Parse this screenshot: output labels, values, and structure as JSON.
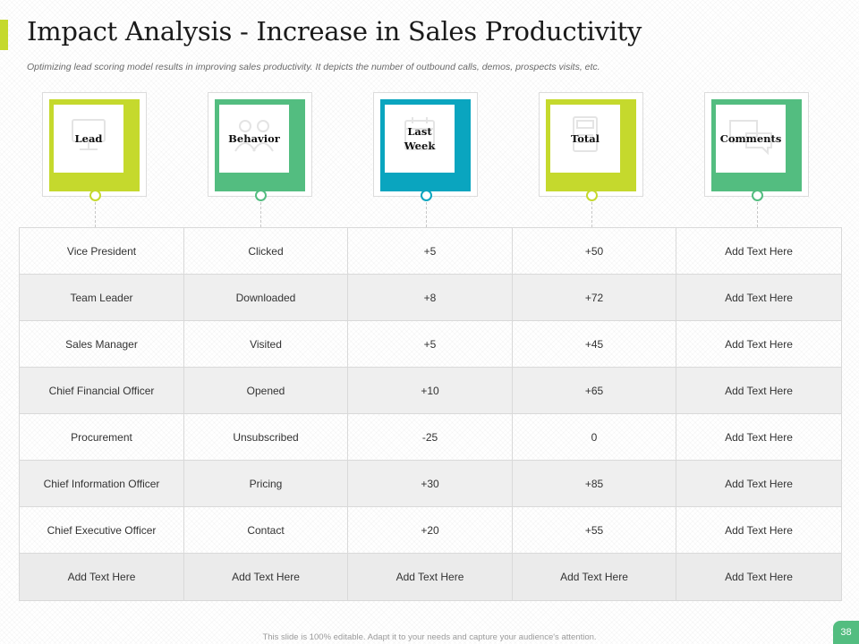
{
  "title": "Impact Analysis - Increase in Sales Productivity",
  "subtitle": "Optimizing lead scoring model results in improving sales productivity. It depicts the number of outbound calls, demos, prospects visits, etc.",
  "colors": {
    "lime": "#c5d92d",
    "green": "#53bd80",
    "teal": "#0aa5bf"
  },
  "columns": [
    {
      "label": "Lead",
      "color": "#c5d92d",
      "icon": "monitor-icon"
    },
    {
      "label": "Behavior",
      "color": "#53bd80",
      "icon": "people-icon"
    },
    {
      "label": "Last Week",
      "color": "#0aa5bf",
      "icon": "calendar-icon"
    },
    {
      "label": "Total",
      "color": "#c5d92d",
      "icon": "calculator-icon"
    },
    {
      "label": "Comments",
      "color": "#53bd80",
      "icon": "chat-bubbles-icon"
    }
  ],
  "rows": [
    [
      "Vice President",
      "Clicked",
      "+5",
      "+50",
      "Add Text Here"
    ],
    [
      "Team Leader",
      "Downloaded",
      "+8",
      "+72",
      "Add Text Here"
    ],
    [
      "Sales Manager",
      "Visited",
      "+5",
      "+45",
      "Add Text Here"
    ],
    [
      "Chief  Financial Officer",
      "Opened",
      "+10",
      "+65",
      "Add Text Here"
    ],
    [
      "Procurement",
      "Unsubscribed",
      "-25",
      "0",
      "Add Text Here"
    ],
    [
      "Chief Information  Officer",
      "Pricing",
      "+30",
      "+85",
      "Add Text Here"
    ],
    [
      "Chief  Executive Officer",
      "Contact",
      "+20",
      "+55",
      "Add Text Here"
    ],
    [
      "Add Text Here",
      "Add Text Here",
      "Add Text Here",
      "Add Text Here",
      "Add Text Here"
    ]
  ],
  "footer": "This slide is 100% editable. Adapt it to your needs and capture your audience's attention.",
  "page_number": "38"
}
